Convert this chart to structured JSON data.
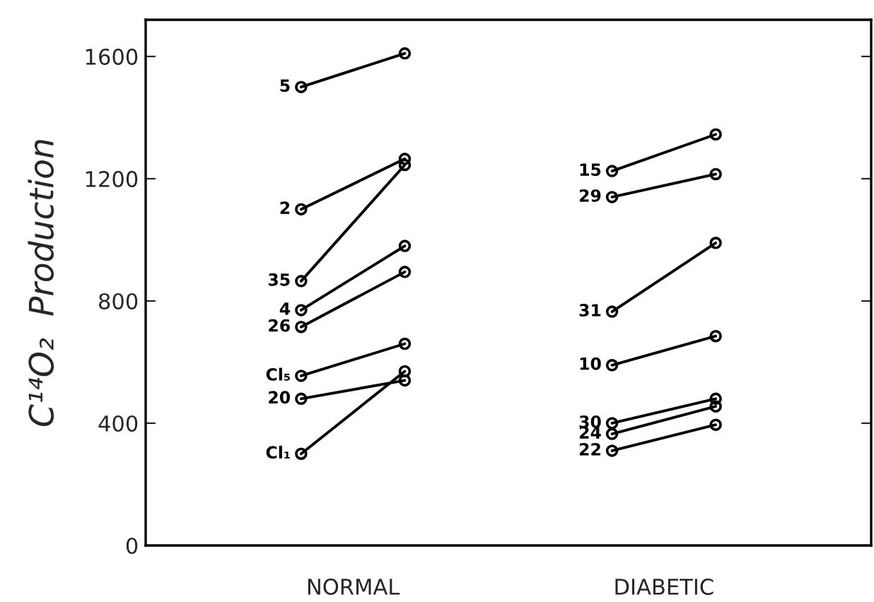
{
  "chart_data": {
    "type": "line",
    "ylabel": "C¹⁴O₂  Production",
    "categories": [
      null,
      null,
      null,
      null,
      null,
      null,
      null
    ],
    "annotations": [
      "NORMAL",
      "DIABETIC"
    ],
    "ylim": [
      0,
      1720
    ],
    "yticks": [
      0,
      400,
      800,
      1200,
      1600
    ],
    "grid": false,
    "marker": "circle",
    "line_style": "solid",
    "series": [
      {
        "name": "5",
        "color": "#000000",
        "values": [
          null,
          1500,
          1610,
          null,
          null,
          null,
          null
        ]
      },
      {
        "name": "2",
        "color": "#000000",
        "values": [
          null,
          1100,
          1265,
          null,
          null,
          null,
          null
        ]
      },
      {
        "name": "35",
        "color": "#000000",
        "values": [
          null,
          865,
          1245,
          null,
          null,
          null,
          null
        ]
      },
      {
        "name": "4",
        "color": "#000000",
        "values": [
          null,
          770,
          980,
          null,
          null,
          null,
          null
        ]
      },
      {
        "name": "26",
        "color": "#000000",
        "values": [
          null,
          715,
          895,
          null,
          null,
          null,
          null
        ]
      },
      {
        "name": "Cl₅",
        "color": "#000000",
        "values": [
          null,
          555,
          660,
          null,
          null,
          null,
          null
        ]
      },
      {
        "name": "20",
        "color": "#000000",
        "values": [
          null,
          480,
          540,
          null,
          null,
          null,
          null
        ]
      },
      {
        "name": "Cl₁",
        "color": "#000000",
        "values": [
          null,
          300,
          570,
          null,
          null,
          null,
          null
        ]
      },
      {
        "name": "15",
        "color": "#000000",
        "values": [
          null,
          null,
          null,
          null,
          1225,
          1345,
          null
        ]
      },
      {
        "name": "29",
        "color": "#000000",
        "values": [
          null,
          null,
          null,
          null,
          1140,
          1215,
          null
        ]
      },
      {
        "name": "31",
        "color": "#000000",
        "values": [
          null,
          null,
          null,
          null,
          765,
          990,
          null
        ]
      },
      {
        "name": "10",
        "color": "#000000",
        "values": [
          null,
          null,
          null,
          null,
          590,
          685,
          null
        ]
      },
      {
        "name": "30",
        "color": "#000000",
        "values": [
          null,
          null,
          null,
          null,
          400,
          480,
          null
        ]
      },
      {
        "name": "24",
        "color": "#000000",
        "values": [
          null,
          null,
          null,
          null,
          365,
          455,
          null
        ]
      },
      {
        "name": "22",
        "color": "#000000",
        "values": [
          null,
          null,
          null,
          null,
          310,
          395,
          null
        ]
      }
    ]
  }
}
